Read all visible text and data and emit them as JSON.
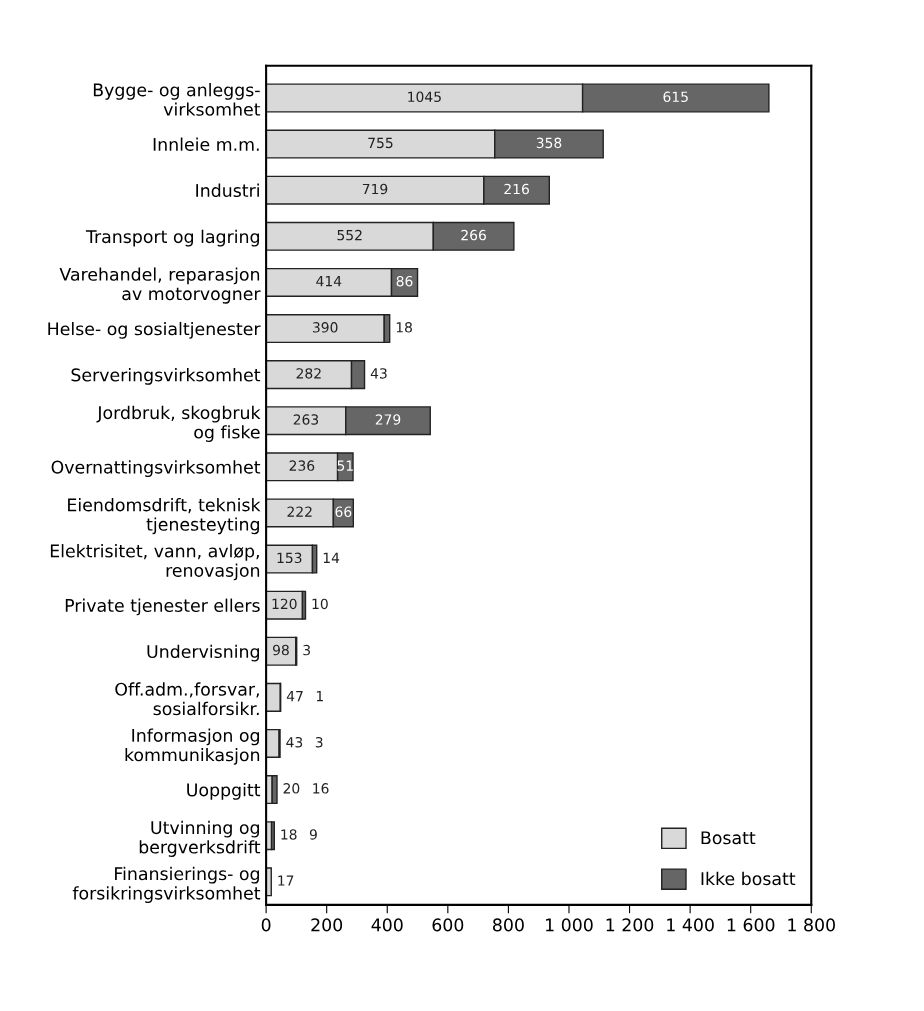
{
  "chart_data": {
    "type": "bar",
    "orientation": "horizontal",
    "stacked": true,
    "categories": [
      "Bygge- og anleggs-\nvirksomhet",
      "Innleie m.m.",
      "Industri",
      "Transport og lagring",
      "Varehandel, reparasjon\nav motorvogner",
      "Helse- og sosialtjenester",
      "Serveringsvirksomhet",
      "Jordbruk, skogbruk\nog fiske",
      "Overnattingsvirksomhet",
      "Eiendomsdrift, teknisk\ntjenesteyting",
      "Elektrisitet, vann, avløp,\nrenovasjon",
      "Private tjenester ellers",
      "Undervisning",
      "Off.adm.,forsvar,\nsosialforsikr.",
      "Informasjon og\nkommunikasjon",
      "Uoppgitt",
      "Utvinning og\nbergverksdrift",
      "Finansierings- og\nforsikringsvirksomhet"
    ],
    "series": [
      {
        "name": "Bosatt",
        "color": "#d9d9d9",
        "values": [
          1045,
          755,
          719,
          552,
          414,
          390,
          282,
          263,
          236,
          222,
          153,
          120,
          98,
          47,
          43,
          20,
          18,
          17
        ]
      },
      {
        "name": "Ikke bosatt",
        "color": "#666666",
        "values": [
          615,
          358,
          216,
          266,
          86,
          18,
          43,
          279,
          51,
          66,
          14,
          10,
          3,
          1,
          3,
          16,
          9,
          null
        ]
      }
    ],
    "data_labels": true,
    "xlim": [
      0,
      1800
    ],
    "xticks": [
      0,
      200,
      400,
      600,
      800,
      {
        "value": 1000,
        "label": "1 000"
      },
      {
        "value": 1200,
        "label": "1 200"
      },
      {
        "value": 1400,
        "label": "1 400"
      },
      {
        "value": 1600,
        "label": "1 600"
      },
      {
        "value": 1800,
        "label": "1 800"
      }
    ],
    "grid": false,
    "legend": "bottom right"
  }
}
